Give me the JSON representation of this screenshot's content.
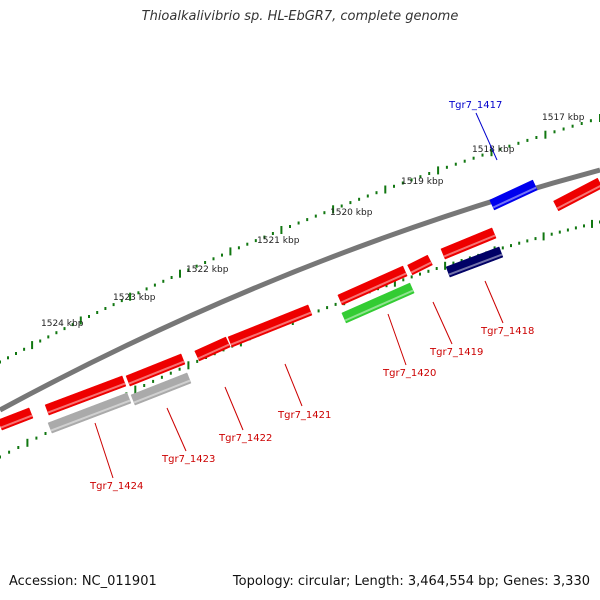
{
  "title": "Thioalkalivibrio sp. HL-EbGR7, complete genome",
  "footer": {
    "accession": "Accession: NC_011901",
    "summary": "Topology: circular; Length: 3,464,554 bp; Genes: 3,330"
  },
  "colors": {
    "cds": "#ee0000",
    "rna": "#0000ee",
    "blast_green": "#33cc33",
    "navy": "#000066",
    "gray_feature": "#aaaaaa",
    "backbone": "#777777",
    "tick": "#117711",
    "gene_label": "#cc0000",
    "rna_label": "#0000cc"
  },
  "map": {
    "kbp_labels": [
      "1517 kbp",
      "1518 kbp",
      "1519 kbp",
      "1520 kbp",
      "1521 kbp",
      "1522 kbp",
      "1523 kbp",
      "1524 kbp"
    ],
    "gene_labels": [
      "Tgr7_1417",
      "Tgr7_1418",
      "Tgr7_1419",
      "Tgr7_1420",
      "Tgr7_1421",
      "Tgr7_1422",
      "Tgr7_1423",
      "Tgr7_1424"
    ]
  }
}
